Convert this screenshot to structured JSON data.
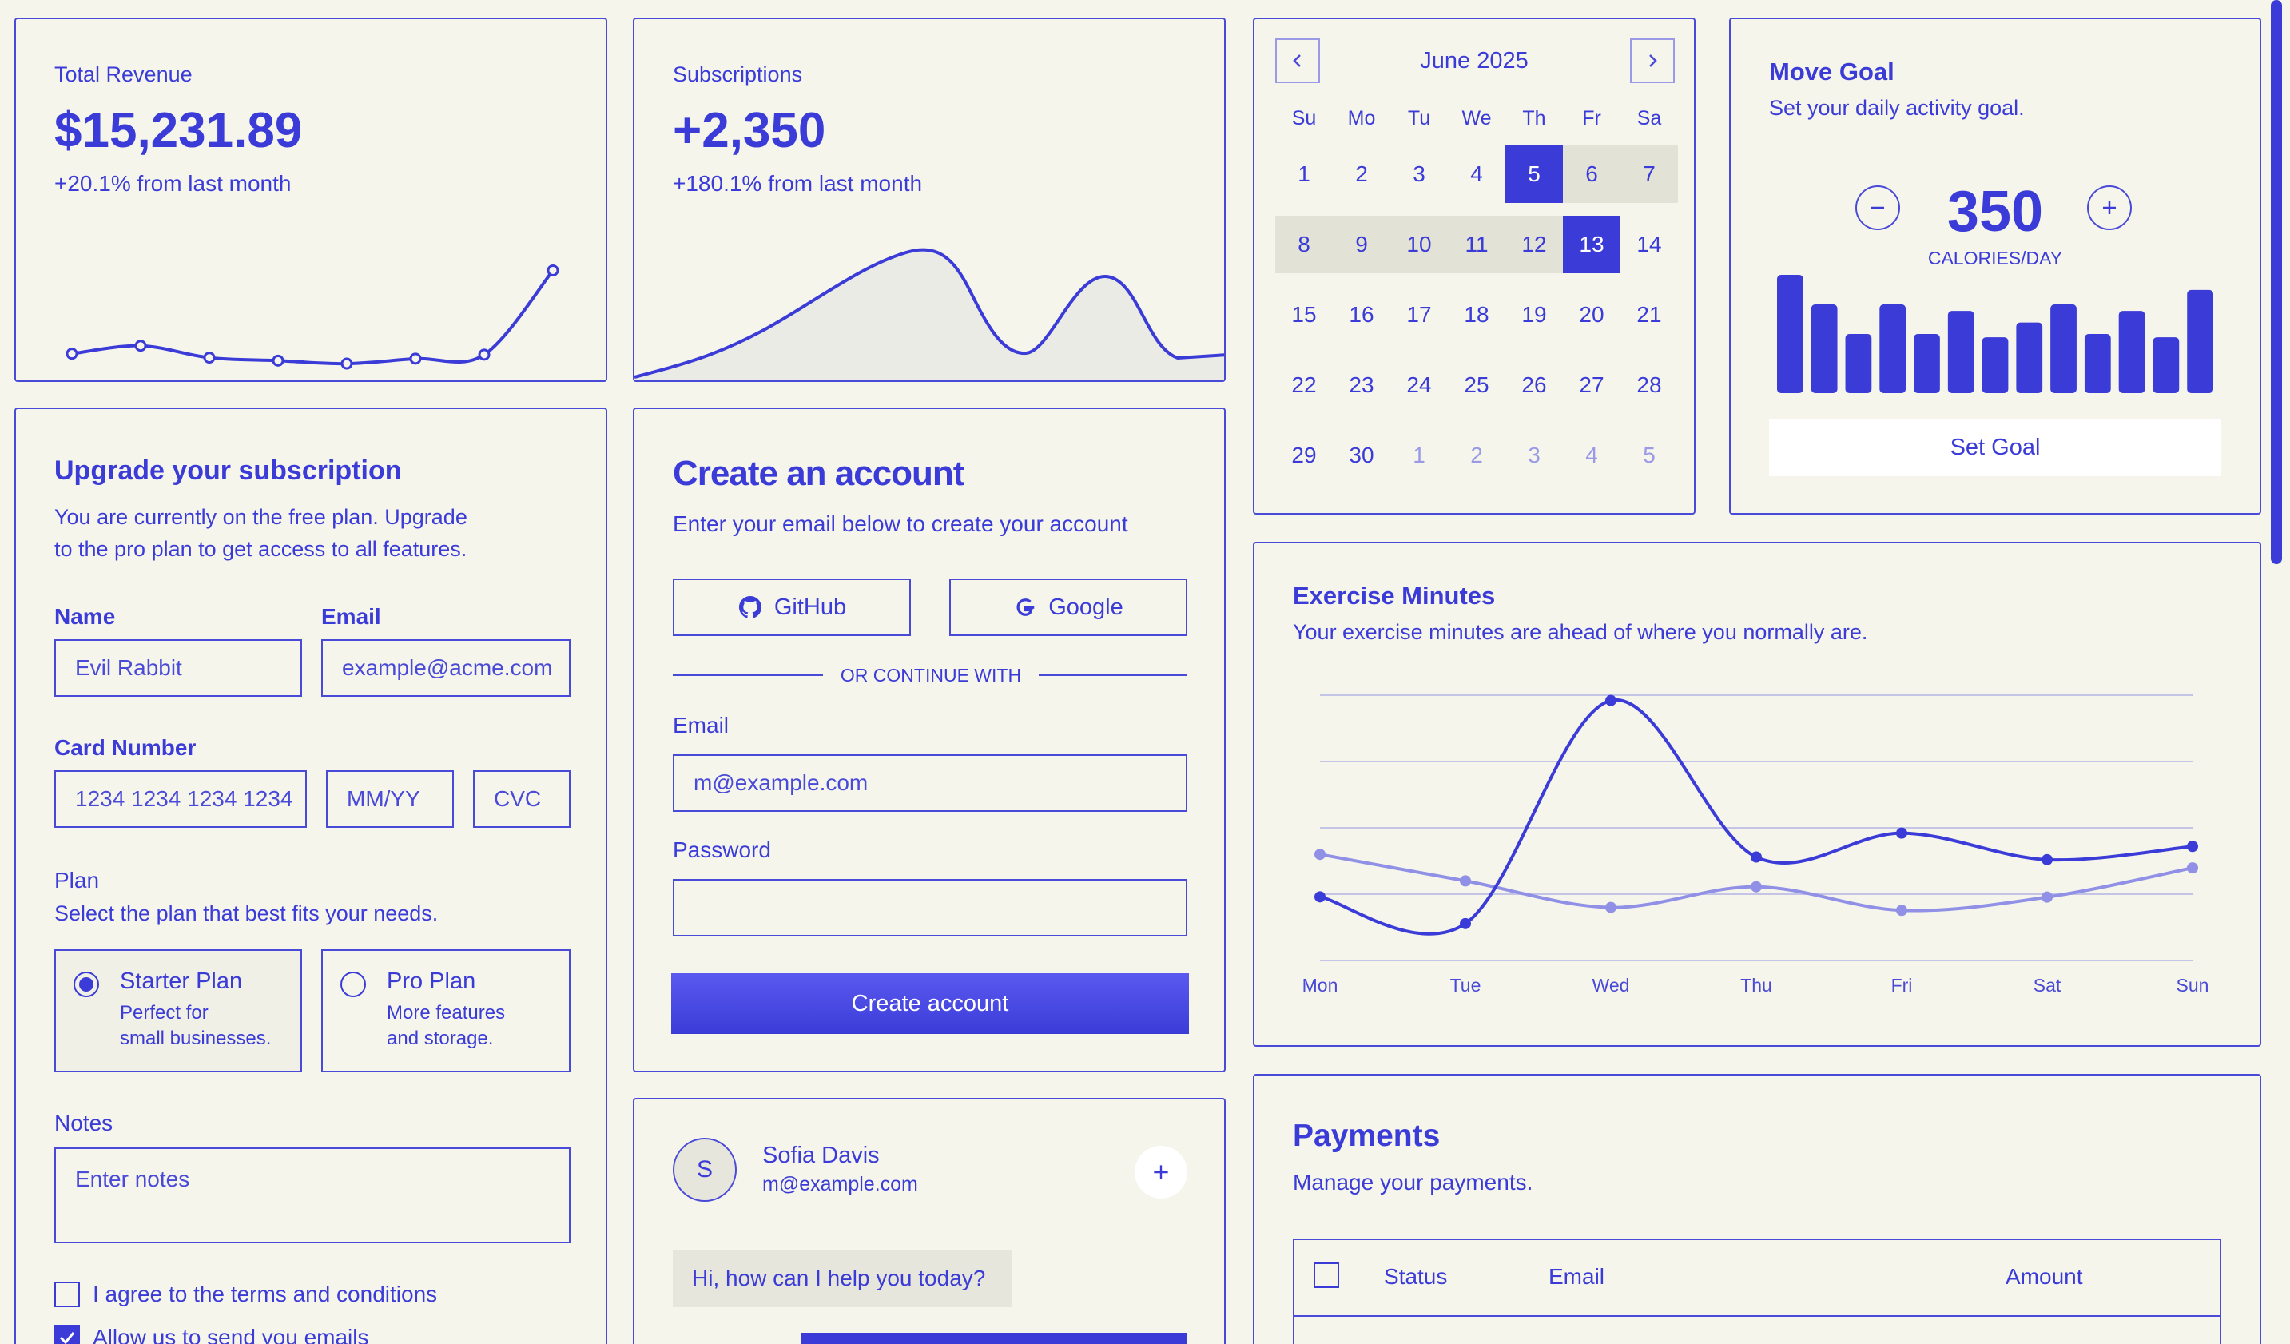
{
  "revenue": {
    "label": "Total Revenue",
    "value": "$15,231.89",
    "delta": "+20.1% from last month",
    "chart_data": {
      "type": "line",
      "values": [
        10400,
        11200,
        10000,
        9700,
        9400,
        9900,
        10300,
        18800
      ]
    }
  },
  "subscriptions": {
    "label": "Subscriptions",
    "value": "+2,350",
    "delta": "+180.1% from last month"
  },
  "calendar": {
    "month": "June 2025",
    "weekdays": [
      "Su",
      "Mo",
      "Tu",
      "We",
      "Th",
      "Fr",
      "Sa"
    ],
    "days": [
      "1",
      "2",
      "3",
      "4",
      "5",
      "6",
      "7",
      "8",
      "9",
      "10",
      "11",
      "12",
      "13",
      "14",
      "15",
      "16",
      "17",
      "18",
      "19",
      "20",
      "21",
      "22",
      "23",
      "24",
      "25",
      "26",
      "27",
      "28",
      "29",
      "30",
      "1",
      "2",
      "3",
      "4",
      "5"
    ],
    "range_start": "5",
    "range_end": "13"
  },
  "move_goal": {
    "title": "Move Goal",
    "subtitle": "Set your daily activity goal.",
    "value": "350",
    "unit": "CALORIES/DAY",
    "button": "Set Goal",
    "chart_data": {
      "type": "bar",
      "values": [
        400,
        300,
        200,
        300,
        200,
        278,
        189,
        239,
        300,
        200,
        278,
        189,
        349
      ]
    }
  },
  "upgrade": {
    "title": "Upgrade your subscription",
    "desc_line1": "You are currently on the free plan. Upgrade",
    "desc_line2": "to the pro plan to get access to all features.",
    "name_label": "Name",
    "name_value": "Evil Rabbit",
    "email_label": "Email",
    "email_value": "example@acme.com",
    "card_label": "Card Number",
    "card_placeholder": "1234 1234 1234 1234",
    "mmyy_placeholder": "MM/YY",
    "cvc_placeholder": "CVC",
    "plan_label": "Plan",
    "plan_desc": "Select the plan that best fits your needs.",
    "plans": [
      {
        "name": "Starter Plan",
        "line1": "Perfect for",
        "line2": "small businesses."
      },
      {
        "name": "Pro Plan",
        "line1": "More features",
        "line2": "and storage."
      }
    ],
    "notes_label": "Notes",
    "notes_placeholder": "Enter notes",
    "terms": "I agree to the terms and conditions",
    "emails": "Allow us to send you emails"
  },
  "create_account": {
    "title": "Create an account",
    "subtitle": "Enter your email below to create your account",
    "github": "GitHub",
    "google": "Google",
    "divider": "OR CONTINUE WITH",
    "email_label": "Email",
    "email_placeholder": "m@example.com",
    "password_label": "Password",
    "submit": "Create account"
  },
  "chat": {
    "avatar": "S",
    "name": "Sofia Davis",
    "email": "m@example.com",
    "message": "Hi, how can I help you today?"
  },
  "exercise": {
    "title": "Exercise Minutes",
    "subtitle": "Your exercise minutes are ahead of where you normally are.",
    "chart_data": {
      "type": "line",
      "categories": [
        "Mon",
        "Tue",
        "Wed",
        "Thu",
        "Fri",
        "Sat",
        "Sun"
      ],
      "series": [
        {
          "values": [
            240,
            139,
            980,
            390,
            480,
            380,
            430
          ]
        },
        {
          "values": [
            400,
            300,
            200,
            278,
            189,
            239,
            349
          ]
        }
      ],
      "ylim": [
        0,
        1000
      ]
    }
  },
  "payments": {
    "title": "Payments",
    "subtitle": "Manage your payments.",
    "columns": [
      "Status",
      "Email",
      "Amount"
    ]
  },
  "colors": {
    "accent": "#3b3bd8",
    "background": "#f5f5ec",
    "muted_line": "#9090e6"
  }
}
